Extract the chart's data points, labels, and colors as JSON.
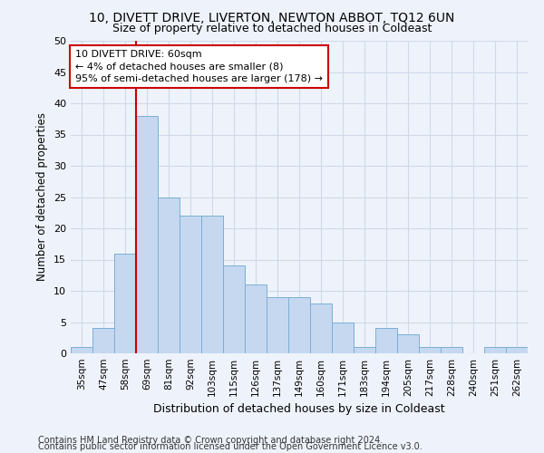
{
  "title": "10, DIVETT DRIVE, LIVERTON, NEWTON ABBOT, TQ12 6UN",
  "subtitle": "Size of property relative to detached houses in Coldeast",
  "xlabel": "Distribution of detached houses by size in Coldeast",
  "ylabel": "Number of detached properties",
  "categories": [
    "35sqm",
    "47sqm",
    "58sqm",
    "69sqm",
    "81sqm",
    "92sqm",
    "103sqm",
    "115sqm",
    "126sqm",
    "137sqm",
    "149sqm",
    "160sqm",
    "171sqm",
    "183sqm",
    "194sqm",
    "205sqm",
    "217sqm",
    "228sqm",
    "240sqm",
    "251sqm",
    "262sqm"
  ],
  "values": [
    1,
    4,
    16,
    38,
    25,
    22,
    22,
    14,
    11,
    9,
    9,
    8,
    5,
    1,
    4,
    3,
    1,
    1,
    0,
    1,
    1
  ],
  "bar_color": "#c5d8f0",
  "bar_edge_color": "#7bafd4",
  "background_color": "#eef3fb",
  "grid_color": "#d0d8e8",
  "vline_x_idx": 2.5,
  "vline_color": "#cc0000",
  "annotation_line1": "10 DIVETT DRIVE: 60sqm",
  "annotation_line2": "← 4% of detached houses are smaller (8)",
  "annotation_line3": "95% of semi-detached houses are larger (178) →",
  "annotation_box_color": "#ffffff",
  "annotation_box_edge": "#cc0000",
  "ylim": [
    0,
    50
  ],
  "yticks": [
    0,
    5,
    10,
    15,
    20,
    25,
    30,
    35,
    40,
    45,
    50
  ],
  "footer1": "Contains HM Land Registry data © Crown copyright and database right 2024.",
  "footer2": "Contains public sector information licensed under the Open Government Licence v3.0.",
  "title_fontsize": 10,
  "subtitle_fontsize": 9,
  "annotation_fontsize": 8,
  "footer_fontsize": 7
}
